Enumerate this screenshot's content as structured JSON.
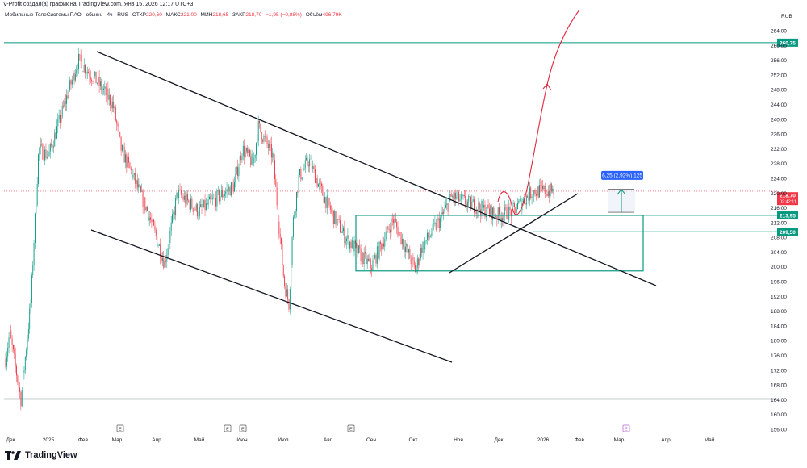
{
  "header": {
    "attribution": "V-Profit создал(а) график на TradingView.com, Янв 15, 2026 12:17 UTC+3"
  },
  "legend": {
    "symbol": "Мобильные ТелеСистемы ПАО - обыкн. · 4ч · RUS",
    "open_label": "ОТКР",
    "open": "220,60",
    "high_label": "МАКС",
    "high": "221,00",
    "low_label": "МИН",
    "low": "218,65",
    "close_label": "ЗАКР",
    "close": "218,70",
    "change": "−1,95 (−0,88%)",
    "volume_label": "Объём",
    "volume": "496,79K"
  },
  "currency": "RUB",
  "brand": {
    "name": "TradingView"
  },
  "colors": {
    "teal": "#089981",
    "candle_up": "#089981",
    "candle_down": "#f23645",
    "trendline": "#131722",
    "arrow": "#e0283f",
    "measure": "#2962ff",
    "badge_price": "#f23645"
  },
  "chart_data": {
    "type": "candlestick",
    "ylim": [
      154,
      268
    ],
    "y_ticks": [
      "156,00",
      "160,00",
      "164,00",
      "168,00",
      "172,00",
      "176,00",
      "180,00",
      "184,00",
      "188,00",
      "192,00",
      "196,00",
      "200,00",
      "204,00",
      "208,00",
      "212,00",
      "216,00",
      "220,00",
      "224,00",
      "228,00",
      "232,00",
      "236,00",
      "240,00",
      "244,00",
      "248,00",
      "252,00",
      "256,00",
      "260,00",
      "264,00"
    ],
    "x_ticks": [
      "Дек",
      "2025",
      "Фев",
      "Мар",
      "Апр",
      "Май",
      "Июн",
      "Июл",
      "Авг",
      "Сен",
      "Окт",
      "Ноя",
      "Дек",
      "2026",
      "Фев",
      "Мар",
      "Апр",
      "Май"
    ],
    "event_markers": [
      "E",
      "E",
      "E",
      "E",
      "E"
    ],
    "price_path": [
      [
        "Дек",
        175
      ],
      [
        "2024-12-15",
        182
      ],
      [
        "2024-12-25",
        164
      ],
      [
        "2025",
        190
      ],
      [
        "2025-01-20",
        232
      ],
      [
        "Фев",
        230
      ],
      [
        "2025-02-15",
        256
      ],
      [
        "Мар",
        250
      ],
      [
        "2025-03-15",
        244
      ],
      [
        "2025-03-25",
        232
      ],
      [
        "Апр",
        215
      ],
      [
        "2025-04-10",
        201
      ],
      [
        "2025-04-20",
        220
      ],
      [
        "Май",
        215
      ],
      [
        "2025-05-20",
        222
      ],
      [
        "Июн",
        232
      ],
      [
        "2025-06-15",
        228
      ],
      [
        "2025-06-25",
        238
      ],
      [
        "2025-07-03",
        230
      ],
      [
        "2025-07-08",
        196
      ],
      [
        "2025-07-15",
        190
      ],
      [
        "2025-07-25",
        212
      ],
      [
        "Авг",
        224
      ],
      [
        "2025-08-15",
        229
      ],
      [
        "Сен",
        222
      ],
      [
        "2025-09-15",
        213
      ],
      [
        "Окт",
        208
      ],
      [
        "2025-10-15",
        200
      ],
      [
        "2025-10-25",
        213
      ],
      [
        "Ноя",
        199
      ],
      [
        "2025-11-15",
        205
      ],
      [
        "Дек",
        213
      ],
      [
        "2025-12-10",
        219
      ],
      [
        "2025-12-20",
        214
      ],
      [
        "2026",
        215
      ],
      [
        "2026-01-15",
        220.5
      ]
    ],
    "last_candle": {
      "open": 220.6,
      "high": 221.0,
      "low": 218.65,
      "close": 218.7,
      "volume": "496,79K"
    },
    "horizontal_levels": [
      {
        "price": 260.75,
        "label": "260,75"
      },
      {
        "price": 213.95,
        "label": "213,95"
      },
      {
        "price": 209.5,
        "label": "209,50"
      },
      {
        "price": 164.2,
        "label": ""
      }
    ],
    "price_badge": {
      "price": 218.7,
      "label": "218,70",
      "countdown": "02:42:11"
    },
    "measure_label": "6,25 (2,92%) 125",
    "consolidation_box": {
      "from_date": "Авг",
      "to_date": "Мар",
      "top": 213.95,
      "bottom": 198.9
    },
    "forecast": "sharp rise from ~220 to above 264"
  }
}
